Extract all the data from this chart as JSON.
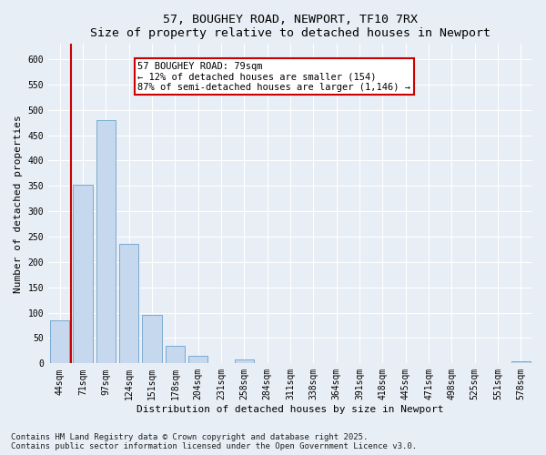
{
  "title1": "57, BOUGHEY ROAD, NEWPORT, TF10 7RX",
  "title2": "Size of property relative to detached houses in Newport",
  "xlabel": "Distribution of detached houses by size in Newport",
  "ylabel": "Number of detached properties",
  "categories": [
    "44sqm",
    "71sqm",
    "97sqm",
    "124sqm",
    "151sqm",
    "178sqm",
    "204sqm",
    "231sqm",
    "258sqm",
    "284sqm",
    "311sqm",
    "338sqm",
    "364sqm",
    "391sqm",
    "418sqm",
    "445sqm",
    "471sqm",
    "498sqm",
    "525sqm",
    "551sqm",
    "578sqm"
  ],
  "values": [
    85,
    352,
    480,
    235,
    95,
    35,
    15,
    0,
    7,
    0,
    0,
    0,
    0,
    0,
    0,
    0,
    0,
    0,
    0,
    0,
    5
  ],
  "bar_color": "#c5d8ee",
  "bar_edge_color": "#7aaad0",
  "vline_x": 0.5,
  "vline_color": "#cc0000",
  "annotation_title": "57 BOUGHEY ROAD: 79sqm",
  "annotation_line1": "← 12% of detached houses are smaller (154)",
  "annotation_line2": "87% of semi-detached houses are larger (1,146) →",
  "annotation_box_edgecolor": "#cc0000",
  "annotation_bg": "#ffffff",
  "ylim": [
    0,
    630
  ],
  "yticks": [
    0,
    50,
    100,
    150,
    200,
    250,
    300,
    350,
    400,
    450,
    500,
    550,
    600
  ],
  "footer1": "Contains HM Land Registry data © Crown copyright and database right 2025.",
  "footer2": "Contains public sector information licensed under the Open Government Licence v3.0.",
  "bg_color": "#e8eef5",
  "grid_color": "#ffffff",
  "title_fontsize": 9.5,
  "axis_label_fontsize": 8,
  "tick_fontsize": 7,
  "footer_fontsize": 6.5,
  "ann_fontsize": 7.5
}
